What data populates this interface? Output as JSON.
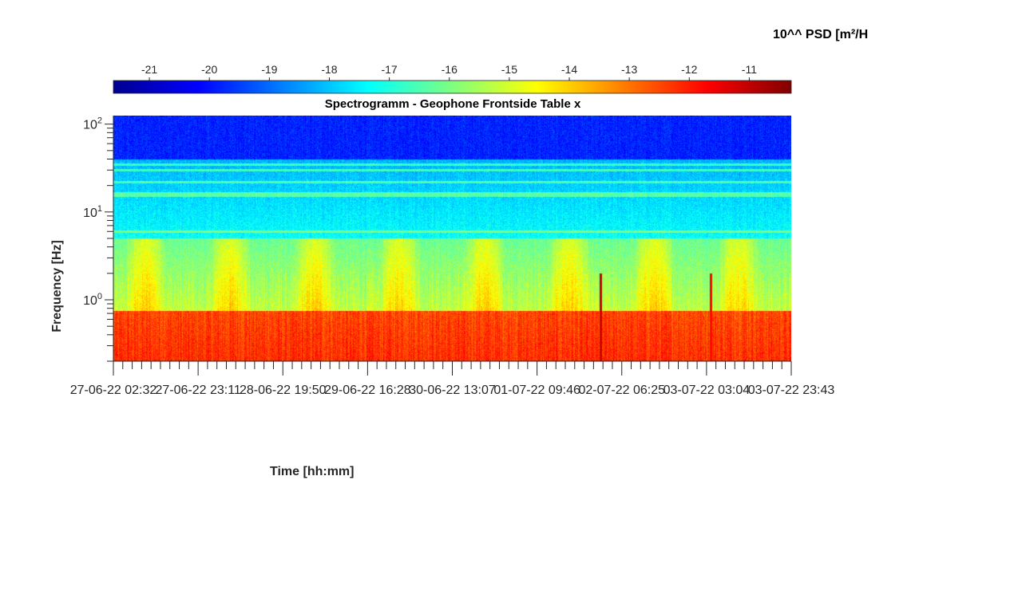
{
  "colorbar": {
    "label": "10^^ PSD [m²/H",
    "ticks": [
      -21,
      -20,
      -19,
      -18,
      -17,
      -16,
      -15,
      -14,
      -13,
      -12,
      -11
    ],
    "range": [
      -21.6,
      -10.3
    ],
    "colormap": "jet",
    "orientation": "horizontal",
    "placement": "top"
  },
  "chart_data": {
    "type": "heatmap",
    "title": "Spectrogramm - Geophone Frontside Table x",
    "xlabel": "Time [hh:mm]",
    "ylabel": "Frequency [Hz]",
    "x_tick_labels": [
      "27-06-22 02:32",
      "27-06-22 23:11",
      "28-06-22 19:50",
      "29-06-22 16:28",
      "30-06-22 13:07",
      "01-07-22 09:46",
      "02-07-22 06:25",
      "03-07-22 03:04",
      "03-07-22 23:43"
    ],
    "y_scale": "log",
    "y_ticks": [
      {
        "value": 1,
        "base": "10",
        "exp": "0"
      },
      {
        "value": 10,
        "base": "10",
        "exp": "1"
      },
      {
        "value": 100,
        "base": "10",
        "exp": "2"
      }
    ],
    "ylim": [
      0.2,
      125
    ],
    "zlim": [
      -21.6,
      -10.3
    ],
    "z_units": "log10 PSD",
    "features": {
      "low_band_hz": [
        0.2,
        0.75
      ],
      "low_band_level": -12.5,
      "mid_band_hz": [
        0.75,
        5
      ],
      "mid_band_level": -15.2,
      "upper_level": -17.3,
      "top_level": -19.8,
      "persistent_lines_hz": [
        6,
        15.5,
        16.5,
        22,
        30,
        35
      ],
      "transient_events": [
        {
          "time_index": 5.75,
          "level": -11.2
        },
        {
          "time_index": 7.05,
          "level": -11.8
        }
      ]
    },
    "grid": false,
    "legend": "none"
  }
}
